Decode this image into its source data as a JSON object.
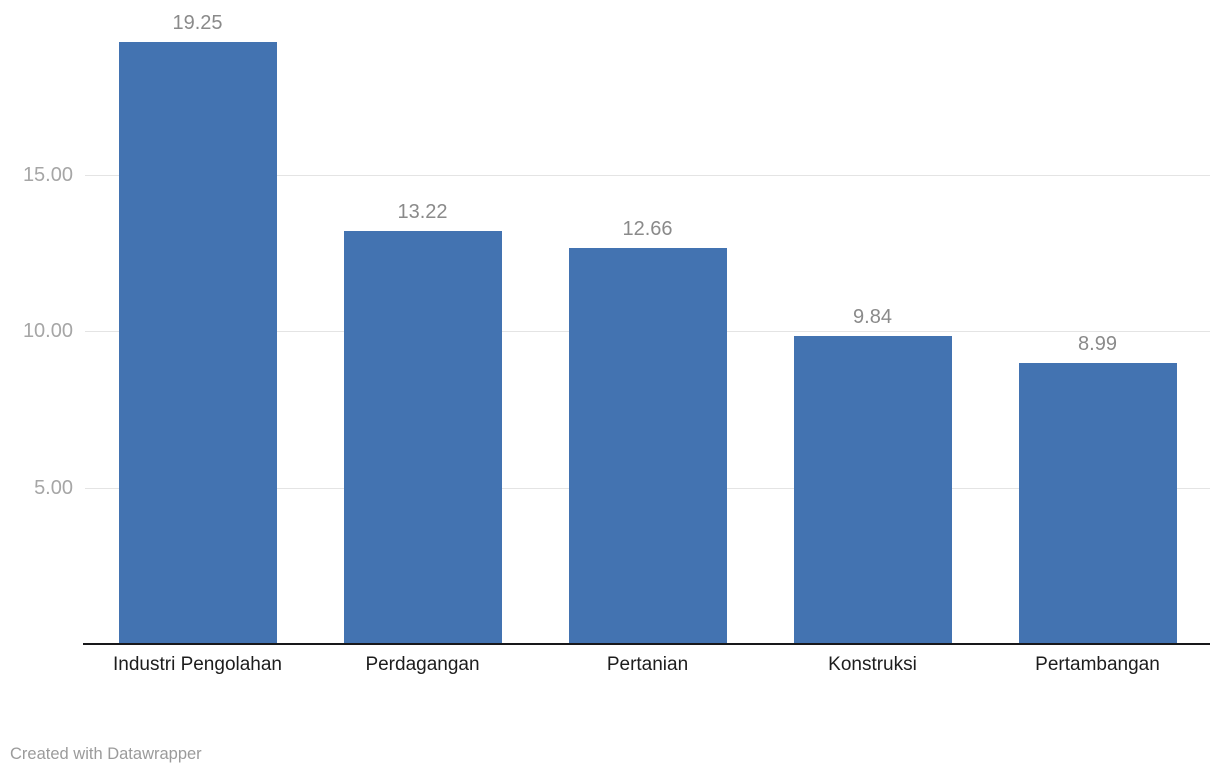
{
  "footer": {
    "credit": "Created with Datawrapper"
  },
  "colors": {
    "bar": "#4373B1",
    "gridline": "#e4e4e4",
    "axis_line": "#18181a",
    "value_label": "#8a8a8a",
    "y_tick_label": "#a6a6a6",
    "category_label": "#1d1d1d",
    "footer_text": "#9b9b9b",
    "background": "#ffffff"
  },
  "chart_data": {
    "type": "bar",
    "title": "",
    "xlabel": "",
    "ylabel": "",
    "categories": [
      "Industri Pengolahan",
      "Perdagangan",
      "Pertanian",
      "Konstruksi",
      "Pertambangan"
    ],
    "values": [
      19.25,
      13.22,
      12.66,
      9.84,
      8.99
    ],
    "value_labels": [
      "19.25",
      "13.22",
      "12.66",
      "9.84",
      "8.99"
    ],
    "y_ticks": [
      {
        "value": 5,
        "label": "5.00"
      },
      {
        "value": 10,
        "label": "10.00"
      },
      {
        "value": 15,
        "label": "15.00"
      }
    ],
    "ylim": [
      0,
      20.6
    ],
    "grid": "horizontal-only",
    "legend": "none",
    "bar_color": "#4373B1",
    "credit": "Created with Datawrapper"
  }
}
